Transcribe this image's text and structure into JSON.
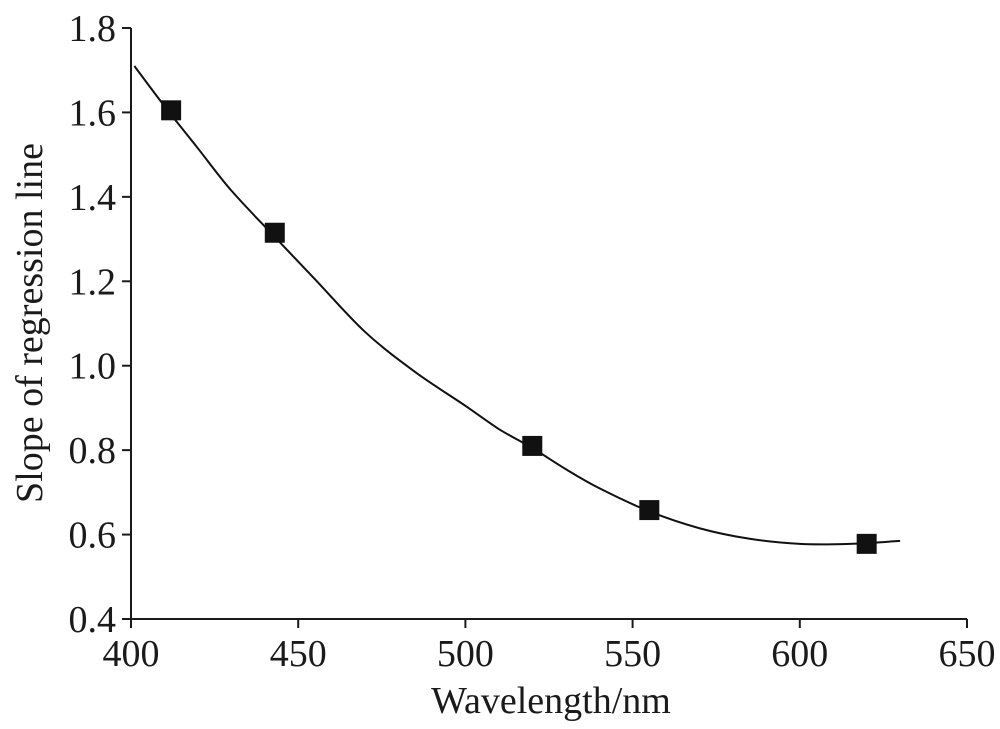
{
  "chart_data": {
    "type": "line",
    "title": "",
    "xlabel": "Wavelength/nm",
    "ylabel": "Slope of regression line",
    "xlim": [
      400,
      650
    ],
    "ylim": [
      0.4,
      1.8
    ],
    "x_ticks": [
      "400",
      "450",
      "500",
      "550",
      "600",
      "650"
    ],
    "y_ticks": [
      "0.4",
      "0.6",
      "0.8",
      "1.0",
      "1.2",
      "1.4",
      "1.6",
      "1.8"
    ],
    "series": [
      {
        "kind": "markers",
        "marker": "square",
        "color": "#111111",
        "x": [
          412,
          443,
          520,
          555,
          620
        ],
        "y": [
          1.605,
          1.315,
          0.81,
          0.658,
          0.578
        ]
      },
      {
        "kind": "fitted-curve",
        "color": "#111111",
        "x": [
          401,
          410,
          420,
          430,
          443,
          455,
          470,
          485,
          500,
          510,
          520,
          530,
          540,
          555,
          570,
          585,
          600,
          615,
          630
        ],
        "y": [
          1.71,
          1.615,
          1.515,
          1.415,
          1.305,
          1.205,
          1.08,
          0.985,
          0.905,
          0.85,
          0.805,
          0.755,
          0.71,
          0.655,
          0.615,
          0.59,
          0.578,
          0.578,
          0.585
        ]
      }
    ],
    "grid": false,
    "legend": "none"
  }
}
